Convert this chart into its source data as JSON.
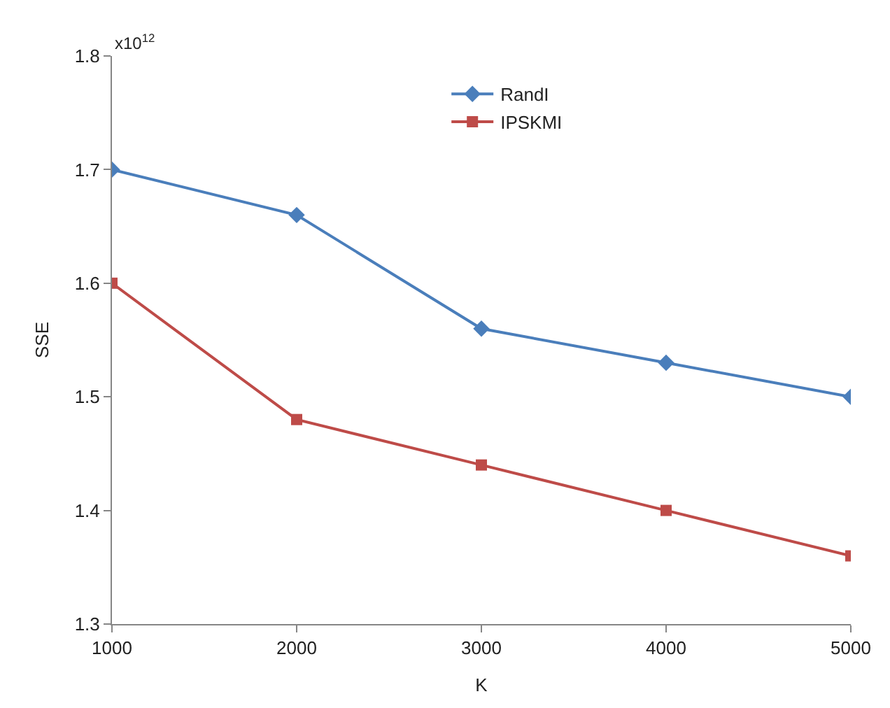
{
  "chart_data": {
    "type": "line",
    "xlabel": "K",
    "ylabel": "SSE",
    "annotations": [
      "x10$^{12}$"
    ],
    "x": [
      1000,
      2000,
      3000,
      4000,
      5000
    ],
    "series": [
      {
        "name": "RandI",
        "color": "#4a7ebb",
        "marker": "diamond",
        "values": [
          1.7,
          1.66,
          1.56,
          1.53,
          1.5
        ]
      },
      {
        "name": "IPSKMI",
        "color": "#be4b48",
        "marker": "square",
        "values": [
          1.6,
          1.48,
          1.44,
          1.4,
          1.36
        ]
      }
    ],
    "xlim": [
      1000,
      5000
    ],
    "xticks": [
      1000,
      2000,
      3000,
      4000,
      5000
    ],
    "ylim": [
      1.3,
      1.8
    ],
    "yticks": [
      1.3,
      1.4,
      1.5,
      1.6,
      1.7,
      1.8
    ],
    "legend": "top right",
    "line_style": "solid"
  }
}
